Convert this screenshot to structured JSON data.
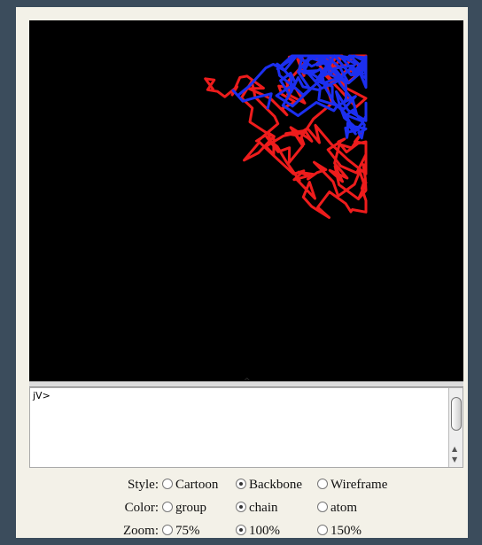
{
  "console": {
    "prompt": "jV>"
  },
  "controls": [
    {
      "label": "Style:",
      "options": [
        "Cartoon",
        "Backbone",
        "Wireframe"
      ],
      "selected": 1
    },
    {
      "label": "Color:",
      "options": [
        "group",
        "chain",
        "atom"
      ],
      "selected": 1
    },
    {
      "label": "Zoom:",
      "options": [
        "75%",
        "100%",
        "150%"
      ],
      "selected": 1
    }
  ]
}
